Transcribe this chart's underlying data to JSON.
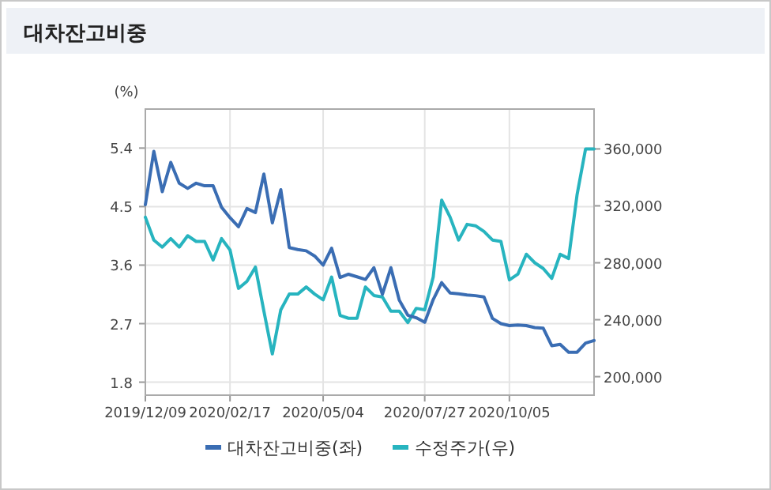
{
  "chart_data": {
    "type": "line",
    "title": "대차잔고비중",
    "ylabel": "(%)",
    "x": [
      "2019-12-09",
      "2019-12-16",
      "2019-12-23",
      "2019-12-30",
      "2020-01-06",
      "2020-01-13",
      "2020-01-20",
      "2020-01-27",
      "2020-02-03",
      "2020-02-10",
      "2020-02-17",
      "2020-02-24",
      "2020-03-02",
      "2020-03-09",
      "2020-03-16",
      "2020-03-23",
      "2020-03-30",
      "2020-04-06",
      "2020-04-13",
      "2020-04-20",
      "2020-04-27",
      "2020-05-04",
      "2020-05-11",
      "2020-05-18",
      "2020-05-25",
      "2020-06-01",
      "2020-06-08",
      "2020-06-15",
      "2020-06-22",
      "2020-06-29",
      "2020-07-06",
      "2020-07-13",
      "2020-07-20",
      "2020-07-27",
      "2020-08-03",
      "2020-08-10",
      "2020-08-17",
      "2020-08-24",
      "2020-08-31",
      "2020-09-07",
      "2020-09-14",
      "2020-09-21",
      "2020-09-28",
      "2020-10-05",
      "2020-10-12",
      "2020-10-19",
      "2020-10-26",
      "2020-11-02",
      "2020-11-09",
      "2020-11-16",
      "2020-11-23",
      "2020-11-30",
      "2020-12-07",
      "2020-12-14"
    ],
    "series": [
      {
        "name": "대차잔고비중(좌)",
        "color": "#3a6db3",
        "values": [
          4.53,
          5.35,
          4.73,
          5.18,
          4.86,
          4.78,
          4.86,
          4.82,
          4.82,
          4.49,
          4.33,
          4.19,
          4.47,
          4.41,
          5.0,
          4.25,
          4.76,
          3.87,
          3.84,
          3.82,
          3.74,
          3.6,
          3.86,
          3.41,
          3.46,
          3.42,
          3.38,
          3.56,
          3.15,
          3.56,
          3.06,
          2.83,
          2.79,
          2.72,
          3.07,
          3.33,
          3.17,
          3.16,
          3.14,
          3.13,
          3.11,
          2.78,
          2.7,
          2.67,
          2.68,
          2.67,
          2.64,
          2.63,
          2.36,
          2.38,
          2.26,
          2.26,
          2.4,
          2.44
        ]
      },
      {
        "name": "수정주가(우)",
        "color": "#27b4bf",
        "axis": "y2",
        "values": [
          312000,
          296000,
          291000,
          297000,
          291000,
          299000,
          295000,
          295000,
          282000,
          297000,
          289000,
          262000,
          267000,
          277000,
          246000,
          216000,
          247000,
          258000,
          258000,
          263000,
          258000,
          254000,
          270000,
          243000,
          241000,
          241000,
          263000,
          257000,
          256000,
          246000,
          246000,
          238000,
          248000,
          247000,
          270000,
          324000,
          312000,
          296000,
          307000,
          306000,
          302000,
          296000,
          295000,
          268000,
          272000,
          286000,
          280000,
          276000,
          269000,
          286000,
          283000,
          328000,
          360000,
          360000
        ]
      }
    ],
    "xlim": [
      "2019-12-09",
      "2020-12-14"
    ],
    "xticks": [
      {
        "value": "2019-12-09",
        "label": "2019/12/09"
      },
      {
        "value": "2020-02-17",
        "label": "2020/02/17"
      },
      {
        "value": "2020-05-04",
        "label": "2020/05/04"
      },
      {
        "value": "2020-07-27",
        "label": "2020/07/27"
      },
      {
        "value": "2020-10-05",
        "label": "2020/10/05"
      }
    ],
    "ylim": [
      1.6,
      6.0
    ],
    "yticks": [
      1.8,
      2.7,
      3.6,
      4.5,
      5.4
    ],
    "y2lim": [
      187000,
      388000
    ],
    "y2ticks": [
      {
        "value": 200000,
        "label": "200,000"
      },
      {
        "value": 240000,
        "label": "240,000"
      },
      {
        "value": 280000,
        "label": "280,000"
      },
      {
        "value": 320000,
        "label": "320,000"
      },
      {
        "value": 360000,
        "label": "360,000"
      }
    ],
    "grid": true,
    "legend": "bottom",
    "marker": "none",
    "line_style": "solid"
  }
}
